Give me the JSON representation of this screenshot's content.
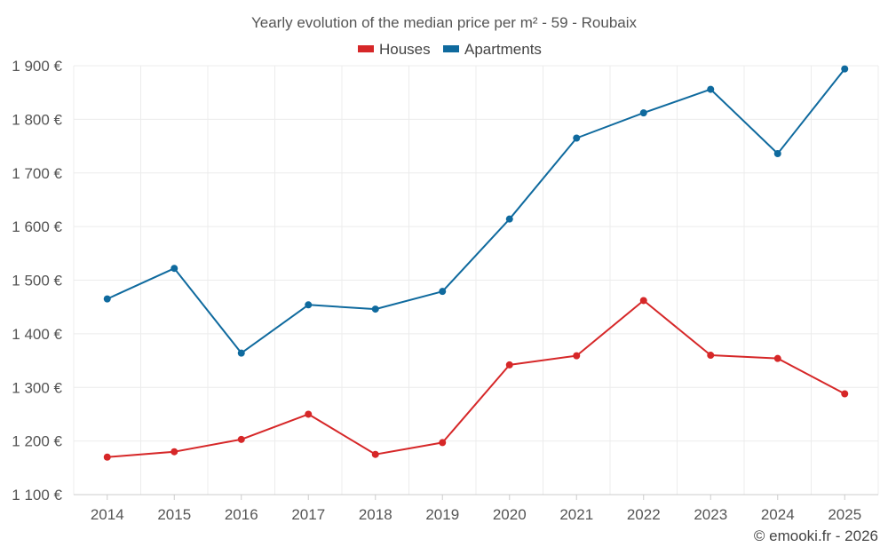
{
  "chart_data": {
    "type": "line",
    "title": "Yearly evolution of the median price per m² - 59 - Roubaix",
    "categories": [
      "2014",
      "2015",
      "2016",
      "2017",
      "2018",
      "2019",
      "2020",
      "2021",
      "2022",
      "2023",
      "2024",
      "2025"
    ],
    "series": [
      {
        "name": "Houses",
        "color": "#d62728",
        "values": [
          1170,
          1180,
          1203,
          1250,
          1175,
          1197,
          1342,
          1359,
          1462,
          1360,
          1354,
          1288
        ]
      },
      {
        "name": "Apartments",
        "color": "#0f6a9e",
        "values": [
          1465,
          1522,
          1364,
          1454,
          1446,
          1479,
          1614,
          1765,
          1812,
          1856,
          1736,
          1894
        ]
      }
    ],
    "ylim": [
      1100,
      1900
    ],
    "yticks": [
      1100,
      1200,
      1300,
      1400,
      1500,
      1600,
      1700,
      1800,
      1900
    ],
    "ytick_labels": [
      "1 100 €",
      "1 200 €",
      "1 300 €",
      "1 400 €",
      "1 500 €",
      "1 600 €",
      "1 700 €",
      "1 800 €",
      "1 900 €"
    ],
    "xlabel": "",
    "ylabel": "",
    "grid": true,
    "legend_position": "top-center"
  },
  "credit": "© emooki.fr - 2026"
}
